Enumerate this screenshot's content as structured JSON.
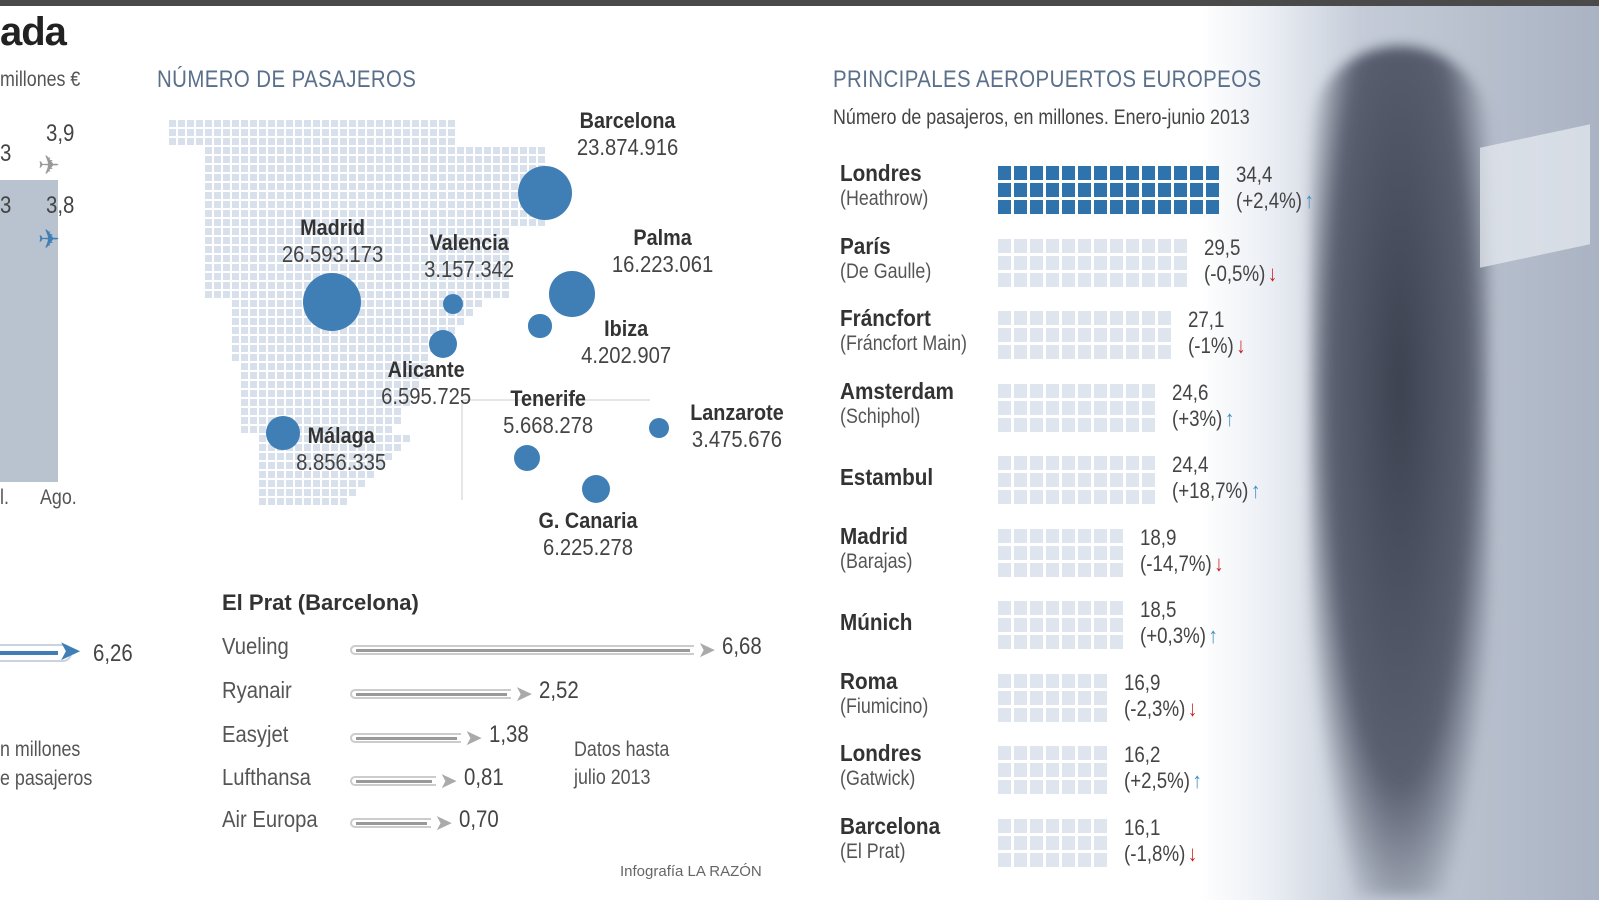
{
  "header": {
    "title": "ada"
  },
  "left_panel": {
    "unit": "millones €",
    "values": [
      {
        "prev": "3",
        "value": "3,9"
      },
      {
        "prev": "3",
        "value": "3,8"
      }
    ],
    "months": [
      "l.",
      "Ago."
    ],
    "total_value": "6,26",
    "caption_lines": [
      "n millones",
      "e pasajeros"
    ]
  },
  "map": {
    "title": "NÚMERO DE PASAJEROS",
    "cities": [
      {
        "name": "Barcelona",
        "value": "23.874.916",
        "passengers": 23874916
      },
      {
        "name": "Madrid",
        "value": "26.593.173",
        "passengers": 26593173
      },
      {
        "name": "Valencia",
        "value": "3.157.342",
        "passengers": 3157342
      },
      {
        "name": "Palma",
        "value": "16.223.061",
        "passengers": 16223061
      },
      {
        "name": "Ibiza",
        "value": "4.202.907",
        "passengers": 4202907
      },
      {
        "name": "Alicante",
        "value": "6.595.725",
        "passengers": 6595725
      },
      {
        "name": "Tenerife",
        "value": "5.668.278",
        "passengers": 5668278
      },
      {
        "name": "Lanzarote",
        "value": "3.475.676",
        "passengers": 3475676
      },
      {
        "name": "Málaga",
        "value": "8.856.335",
        "passengers": 8856335
      },
      {
        "name": "G. Canaria",
        "value": "6.225.278",
        "passengers": 6225278
      }
    ]
  },
  "el_prat": {
    "title": "El Prat (Barcelona)",
    "airlines": [
      {
        "name": "Vueling",
        "value": "6,68",
        "num": 6.68
      },
      {
        "name": "Ryanair",
        "value": "2,52",
        "num": 2.52
      },
      {
        "name": "Easyjet",
        "value": "1,38",
        "num": 1.38
      },
      {
        "name": "Lufthansa",
        "value": "0,81",
        "num": 0.81
      },
      {
        "name": "Air Europa",
        "value": "0,70",
        "num": 0.7
      }
    ],
    "note_lines": [
      "Datos hasta",
      "julio 2013"
    ]
  },
  "credit": "Infografía LA RAZÓN",
  "chart_data": {
    "type": "bar",
    "title": "PRINCIPALES AEROPUERTOS EUROPEOS",
    "subtitle": "Número de pasajeros, en millones. Enero-junio 2013",
    "airports": [
      {
        "city": "Londres",
        "airport": "(Heathrow)",
        "value": 34.4,
        "label": "34,4",
        "change": "(+2,4%)",
        "trend": "up",
        "highlight": true
      },
      {
        "city": "París",
        "airport": "(De Gaulle)",
        "value": 29.5,
        "label": "29,5",
        "change": "(-0,5%)",
        "trend": "down"
      },
      {
        "city": "Fráncfort",
        "airport": "(Fráncfort Main)",
        "value": 27.1,
        "label": "27,1",
        "change": "(-1%)",
        "trend": "down"
      },
      {
        "city": "Amsterdam",
        "airport": "(Schiphol)",
        "value": 24.6,
        "label": "24,6",
        "change": "(+3%)",
        "trend": "up"
      },
      {
        "city": "Estambul",
        "airport": "",
        "value": 24.4,
        "label": "24,4",
        "change": "(+18,7%)",
        "trend": "up"
      },
      {
        "city": "Madrid",
        "airport": "(Barajas)",
        "value": 18.9,
        "label": "18,9",
        "change": "(-14,7%)",
        "trend": "down"
      },
      {
        "city": "Múnich",
        "airport": "",
        "value": 18.5,
        "label": "18,5",
        "change": "(+0,3%)",
        "trend": "up"
      },
      {
        "city": "Roma",
        "airport": "(Fiumicino)",
        "value": 16.9,
        "label": "16,9",
        "change": "(-2,3%)",
        "trend": "down"
      },
      {
        "city": "Londres",
        "airport": "(Gatwick)",
        "value": 16.2,
        "label": "16,2",
        "change": "(+2,5%)",
        "trend": "up"
      },
      {
        "city": "Barcelona",
        "airport": "(El Prat)",
        "value": 16.1,
        "label": "16,1",
        "change": "(-1,8%)",
        "trend": "down"
      }
    ]
  },
  "colors": {
    "accent": "#2f73ad",
    "up": "#3f8fc5",
    "down": "#cc1f1f"
  }
}
